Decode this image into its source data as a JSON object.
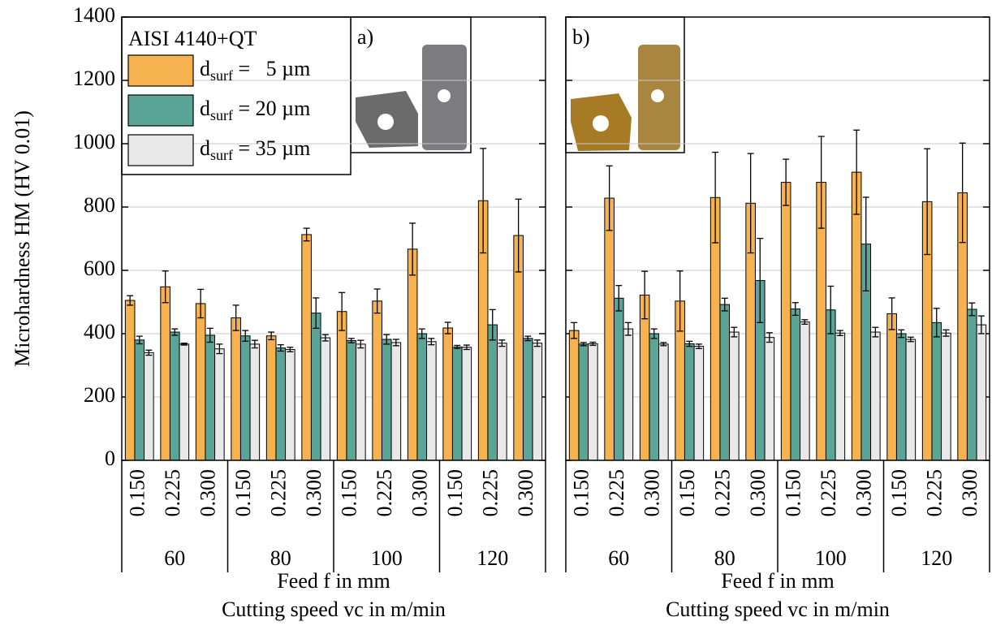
{
  "chart_data": [
    {
      "type": "bar",
      "annotation": "AISI 4140+QT",
      "panel_label": "a)",
      "y_label": "Microhardness HM (HV 0.01)",
      "x_label": "Feed f in mm",
      "x_label_2": "Cutting speed vc in m/min",
      "categories": [
        "0.150",
        "0.225",
        "0.300",
        "0.150",
        "0.225",
        "0.300",
        "0.150",
        "0.225",
        "0.300",
        "0.150",
        "0.225",
        "0.300"
      ],
      "groups": [
        "60",
        "80",
        "100",
        "120"
      ],
      "ylim": [
        0,
        1400
      ],
      "yticks": [
        0,
        200,
        400,
        600,
        800,
        1000,
        1200,
        1400
      ],
      "grid": true,
      "legend": "top-left",
      "series": [
        {
          "name": "dsurf =   5 µm",
          "color": "#f7b250",
          "values": [
            505,
            548,
            495,
            450,
            393,
            713,
            470,
            503,
            667,
            418,
            820,
            710
          ],
          "errors": [
            15,
            50,
            45,
            40,
            12,
            20,
            60,
            38,
            82,
            18,
            165,
            115
          ]
        },
        {
          "name": "dsurf = 20 µm",
          "color": "#5aa597",
          "values": [
            380,
            405,
            395,
            393,
            355,
            465,
            378,
            382,
            400,
            358,
            428,
            385
          ],
          "errors": [
            12,
            10,
            22,
            17,
            10,
            48,
            7,
            15,
            15,
            5,
            48,
            7
          ]
        },
        {
          "name": "dsurf = 35 µm",
          "color": "#e8e8e8",
          "values": [
            340,
            367,
            352,
            367,
            350,
            387,
            367,
            372,
            375,
            357,
            370,
            370
          ],
          "errors": [
            8,
            3,
            15,
            12,
            7,
            10,
            12,
            10,
            10,
            7,
            10,
            10
          ]
        }
      ]
    },
    {
      "type": "bar",
      "panel_label": "b)",
      "x_label": "Feed f in mm",
      "x_label_2": "Cutting speed vc in m/min",
      "categories": [
        "0.150",
        "0.225",
        "0.300",
        "0.150",
        "0.225",
        "0.300",
        "0.150",
        "0.225",
        "0.300",
        "0.150",
        "0.225",
        "0.300"
      ],
      "groups": [
        "60",
        "80",
        "100",
        "120"
      ],
      "ylim": [
        0,
        1400
      ],
      "yticks": [
        0,
        200,
        400,
        600,
        800,
        1000,
        1200,
        1400
      ],
      "grid": true,
      "series": [
        {
          "color": "#f7b250",
          "values": [
            410,
            828,
            522,
            503,
            830,
            812,
            878,
            878,
            910,
            463,
            817,
            845
          ],
          "errors": [
            25,
            102,
            75,
            95,
            143,
            157,
            73,
            145,
            133,
            50,
            167,
            157
          ]
        },
        {
          "color": "#5aa597",
          "values": [
            367,
            512,
            400,
            368,
            492,
            568,
            478,
            475,
            683,
            400,
            435,
            477
          ],
          "errors": [
            5,
            40,
            15,
            8,
            20,
            133,
            20,
            75,
            148,
            12,
            45,
            20
          ]
        },
        {
          "color": "#e8e8e8",
          "values": [
            368,
            415,
            367,
            360,
            405,
            388,
            437,
            402,
            405,
            382,
            402,
            428
          ],
          "errors": [
            5,
            20,
            5,
            7,
            15,
            15,
            7,
            8,
            15,
            7,
            10,
            28
          ]
        }
      ]
    }
  ]
}
